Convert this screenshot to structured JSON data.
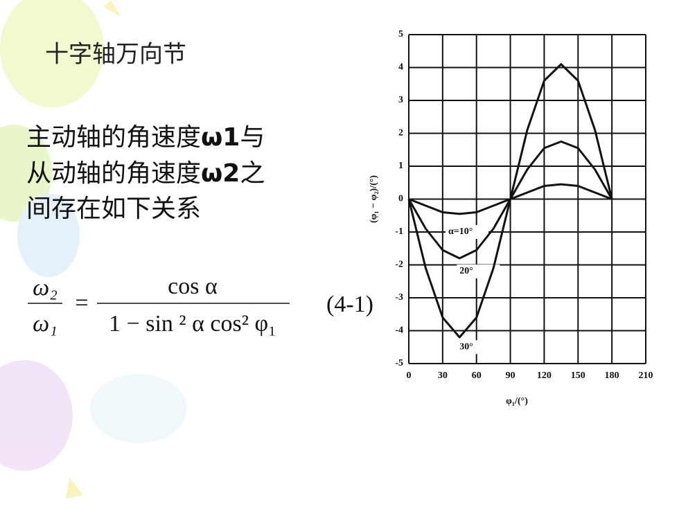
{
  "title": "十字轴万向节",
  "body": [
    [
      "主动轴的角速度",
      "ω1",
      "与"
    ],
    [
      "从动轴的角速度",
      "ω2",
      "之"
    ],
    [
      "间存在如下关系"
    ]
  ],
  "formula": {
    "lhs_num": "ω₂",
    "lhs_den": "ω₁",
    "eq": "=",
    "rhs_num": "cos α",
    "rhs_den": "1 − sin ² α cos² φ₁",
    "number": "(4-1)"
  },
  "chart_data": {
    "type": "line",
    "x_label": "φ₁/(°)",
    "y_label": "(φ₁ − φ₂)/(°)",
    "x": [
      0,
      15,
      30,
      45,
      60,
      75,
      90,
      105,
      120,
      135,
      150,
      165,
      180
    ],
    "series": [
      {
        "name": "α=10°",
        "color": "#111111",
        "values": [
          0,
          -0.2,
          -0.4,
          -0.45,
          -0.4,
          -0.2,
          0,
          0.2,
          0.4,
          0.45,
          0.4,
          0.2,
          0
        ]
      },
      {
        "name": "20°",
        "color": "#111111",
        "values": [
          0,
          -0.9,
          -1.55,
          -1.8,
          -1.55,
          -0.9,
          0,
          0.9,
          1.55,
          1.75,
          1.55,
          0.9,
          0
        ]
      },
      {
        "name": "30°",
        "color": "#111111",
        "values": [
          0,
          -2.1,
          -3.6,
          -4.2,
          -3.6,
          -2.1,
          0,
          2.1,
          3.6,
          4.1,
          3.6,
          2.1,
          0
        ]
      }
    ],
    "xlim": [
      0,
      210
    ],
    "xticks": [
      0,
      30,
      60,
      90,
      120,
      150,
      180,
      210
    ],
    "ylim": [
      -5,
      5
    ],
    "yticks": [
      -5,
      -4,
      -3,
      -2,
      -1,
      0,
      1,
      2,
      3,
      4,
      5
    ],
    "grid": true
  }
}
